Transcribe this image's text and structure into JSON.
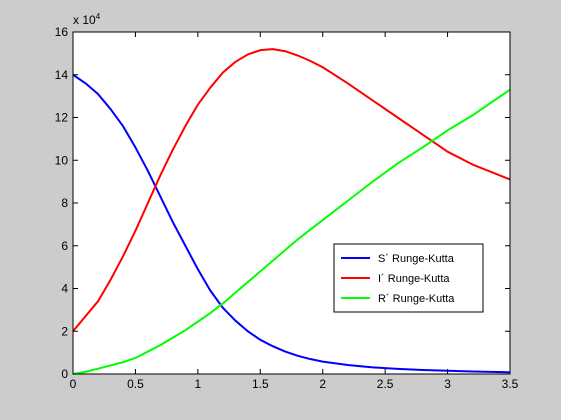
{
  "chart_data": {
    "type": "line",
    "title": "",
    "xlabel": "",
    "ylabel": "",
    "y_scale_label": "x 10",
    "y_scale_exponent": "4",
    "xlim": [
      0,
      3.5
    ],
    "ylim": [
      0,
      160000
    ],
    "x_ticks": [
      0,
      0.5,
      1,
      1.5,
      2,
      2.5,
      3,
      3.5
    ],
    "x_tick_labels": [
      "0",
      "0.5",
      "1",
      "1.5",
      "2",
      "2.5",
      "3",
      "3.5"
    ],
    "y_ticks": [
      0,
      20000,
      40000,
      60000,
      80000,
      100000,
      120000,
      140000,
      160000
    ],
    "y_tick_labels": [
      "0",
      "2",
      "4",
      "6",
      "8",
      "10",
      "12",
      "14",
      "16"
    ],
    "grid": false,
    "legend_position": "center-right",
    "colors": {
      "background": "#cccccc",
      "plot_area": "#ffffff",
      "axis": "#000000"
    },
    "series": [
      {
        "name": "S´ Runge-Kutta",
        "color": "#0000ff",
        "x": [
          0,
          0.1,
          0.2,
          0.3,
          0.4,
          0.5,
          0.6,
          0.7,
          0.8,
          0.9,
          1.0,
          1.1,
          1.2,
          1.3,
          1.4,
          1.5,
          1.6,
          1.7,
          1.8,
          1.9,
          2.0,
          2.2,
          2.4,
          2.6,
          2.8,
          3.0,
          3.2,
          3.5
        ],
        "y": [
          140000,
          136000,
          131000,
          124000,
          116000,
          106000,
          95000,
          83000,
          71000,
          60000,
          49000,
          39000,
          31000,
          25000,
          20000,
          16000,
          13000,
          10500,
          8500,
          7000,
          5800,
          4200,
          3100,
          2400,
          1900,
          1500,
          1200,
          800
        ]
      },
      {
        "name": "I´ Runge-Kutta",
        "color": "#ff0000",
        "x": [
          0,
          0.1,
          0.2,
          0.3,
          0.4,
          0.5,
          0.6,
          0.7,
          0.8,
          0.9,
          1.0,
          1.1,
          1.2,
          1.3,
          1.4,
          1.5,
          1.6,
          1.7,
          1.8,
          1.9,
          2.0,
          2.2,
          2.4,
          2.6,
          2.8,
          3.0,
          3.2,
          3.5
        ],
        "y": [
          20000,
          27000,
          34000,
          44000,
          55000,
          67000,
          80000,
          93000,
          105000,
          116000,
          126000,
          134000,
          141000,
          146000,
          149500,
          151500,
          152000,
          151000,
          149000,
          146500,
          143500,
          136000,
          128000,
          120000,
          112000,
          104000,
          98000,
          91000
        ]
      },
      {
        "name": "R´ Runge-Kutta",
        "color": "#00ff00",
        "x": [
          0,
          0.1,
          0.2,
          0.3,
          0.4,
          0.5,
          0.6,
          0.7,
          0.8,
          0.9,
          1.0,
          1.1,
          1.2,
          1.3,
          1.4,
          1.5,
          1.6,
          1.7,
          1.8,
          1.9,
          2.0,
          2.2,
          2.4,
          2.6,
          2.8,
          3.0,
          3.2,
          3.5
        ],
        "y": [
          0,
          1000,
          2500,
          4000,
          5500,
          7500,
          10500,
          13500,
          17000,
          20500,
          24500,
          28500,
          33000,
          38000,
          43000,
          48000,
          53000,
          58000,
          63000,
          67500,
          72000,
          81000,
          90000,
          98500,
          106000,
          114000,
          121000,
          133000
        ]
      }
    ]
  }
}
